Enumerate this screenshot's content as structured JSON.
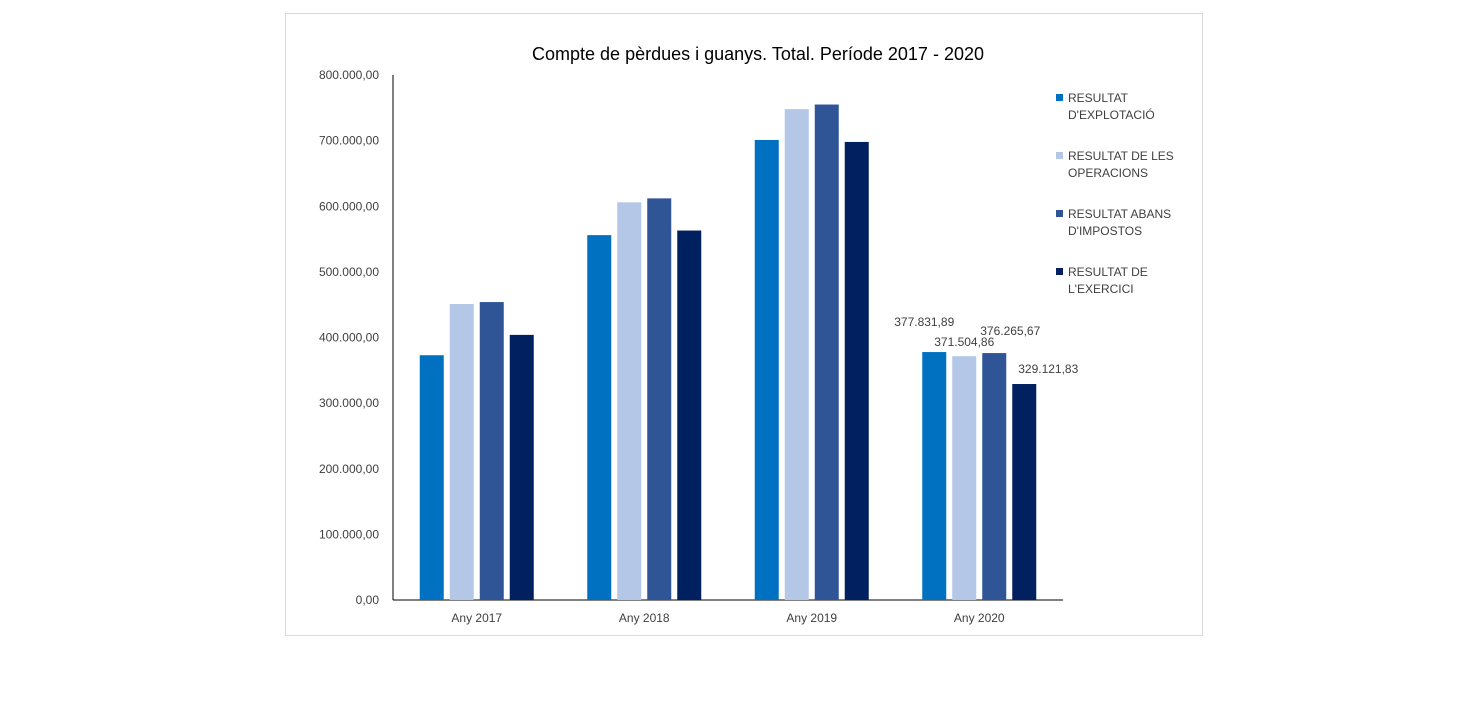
{
  "chart_data": {
    "type": "bar",
    "title": "Compte de pèrdues i guanys. Total. Període 2017 - 2020",
    "xlabel": "",
    "ylabel": "",
    "categories": [
      "Any 2017",
      "Any 2018",
      "Any 2019",
      "Any 2020"
    ],
    "ylim": [
      0,
      800000
    ],
    "yticks": [
      0,
      100000,
      200000,
      300000,
      400000,
      500000,
      600000,
      700000,
      800000
    ],
    "ytick_labels": [
      "0,00",
      "100.000,00",
      "200.000,00",
      "300.000,00",
      "400.000,00",
      "500.000,00",
      "600.000,00",
      "700.000,00",
      "800.000,00"
    ],
    "grid": false,
    "legend_position": "right",
    "series": [
      {
        "name": "RESULTAT D'EXPLOTACIÓ",
        "legend_lines": [
          "RESULTAT",
          "D'EXPLOTACIÓ"
        ],
        "color": "#0070c0",
        "values": [
          373000,
          556000,
          701000,
          377831.89
        ],
        "data_labels": [
          "",
          "",
          "",
          "377.831,89"
        ]
      },
      {
        "name": "RESULTAT DE LES OPERACIONS",
        "legend_lines": [
          "RESULTAT DE LES",
          "OPERACIONS"
        ],
        "color": "#b4c7e7",
        "values": [
          451000,
          606000,
          748000,
          371504.86
        ],
        "data_labels": [
          "",
          "",
          "",
          "371.504,86"
        ]
      },
      {
        "name": "RESULTAT ABANS D'IMPOSTOS",
        "legend_lines": [
          "RESULTAT ABANS",
          "D'IMPOSTOS"
        ],
        "color": "#2f5597",
        "values": [
          454000,
          612000,
          755000,
          376265.67
        ],
        "data_labels": [
          "",
          "",
          "",
          "376.265,67"
        ]
      },
      {
        "name": "RESULTAT DE L'EXERCICI",
        "legend_lines": [
          "RESULTAT DE",
          "L'EXERCICI"
        ],
        "color": "#002060",
        "values": [
          404000,
          563000,
          698000,
          329121.83
        ],
        "data_labels": [
          "",
          "",
          "",
          "329.121,83"
        ]
      }
    ]
  }
}
